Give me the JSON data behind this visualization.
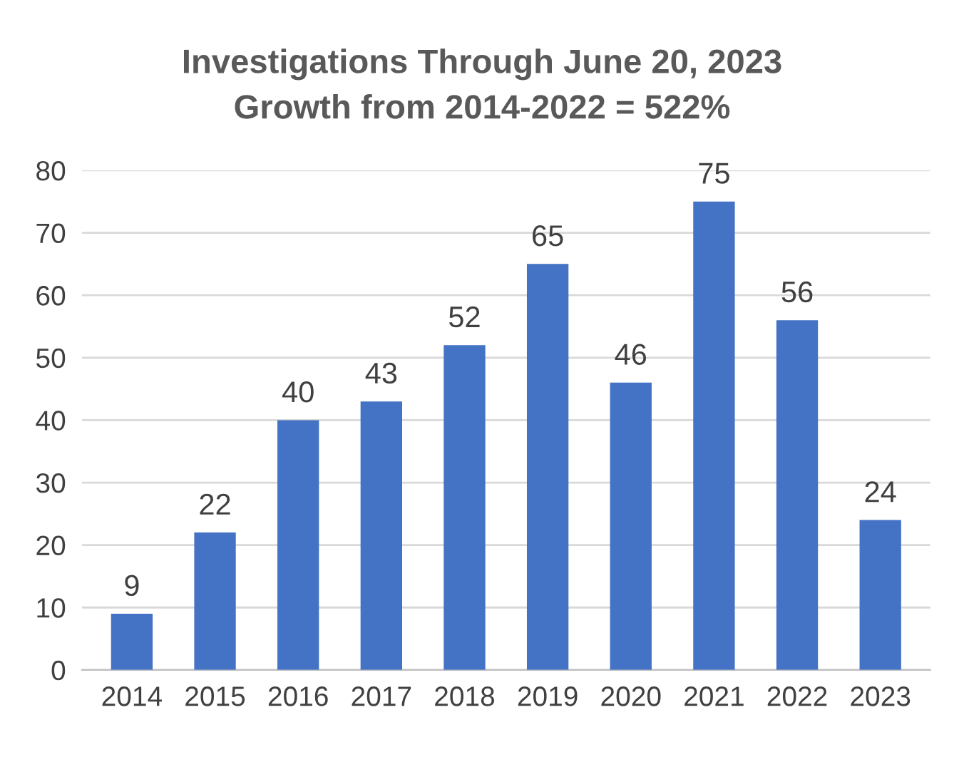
{
  "chart_data": {
    "type": "bar",
    "title": "Investigations Through June 20, 2023",
    "subtitle": "Growth from 2014-2022 = 522%",
    "categories": [
      "2014",
      "2015",
      "2016",
      "2017",
      "2018",
      "2019",
      "2020",
      "2021",
      "2022",
      "2023"
    ],
    "values": [
      9,
      22,
      40,
      43,
      52,
      65,
      46,
      75,
      56,
      24
    ],
    "color": "#4472c4",
    "ylim": [
      0,
      80
    ],
    "yticks": [
      0,
      10,
      20,
      30,
      40,
      50,
      60,
      70,
      80
    ],
    "grid": "y",
    "data_labels": true
  }
}
